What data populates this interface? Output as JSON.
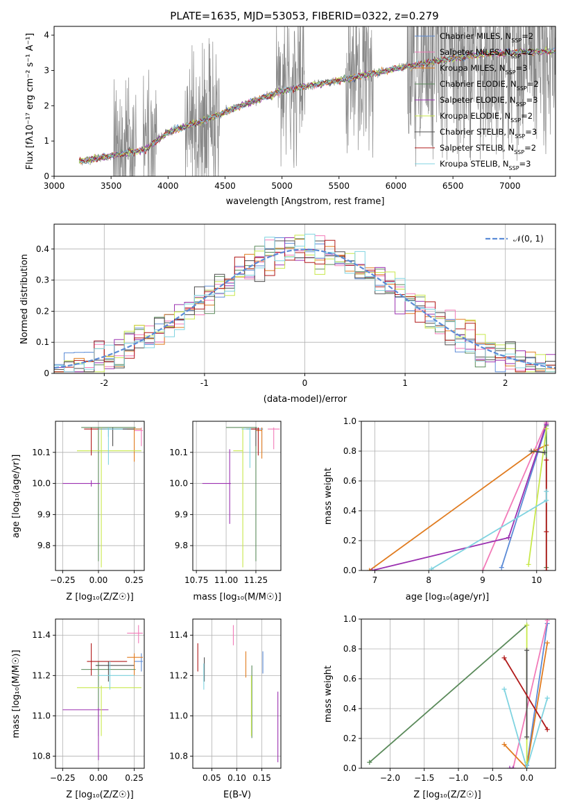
{
  "title": "PLATE=1635, MJD=53053, FIBERID=0322, z=0.279",
  "panels": {
    "spectrum": {
      "xlabel": "wavelength [Angstrom, rest frame]",
      "ylabel": "Flux [f$_\\lambda$10$^{-17}$ erg cm$^{-2}$ s$^{-1}$ A$^{-1}$]",
      "ylabel_display": "Flux [fλ10⁻¹⁷ erg cm⁻² s⁻¹ A⁻¹]"
    },
    "residuals": {
      "xlabel": "(data-model)/error",
      "ylabel": "Normed distribution",
      "legend_label": "𝒩(0, 1)"
    },
    "age_vs_Z": {
      "xlabel": "Z [log₁₀(Z/Z☉)]",
      "ylabel": "age  [log₁₀(age/yr)]"
    },
    "age_vs_mass": {
      "xlabel": "mass [log₁₀(M/M☉)]"
    },
    "massweight_vs_age": {
      "xlabel": "age  [log₁₀(age/yr)]",
      "ylabel": "mass weight"
    },
    "mass_vs_Z": {
      "xlabel": "Z [log₁₀(Z/Z☉)]",
      "ylabel": "mass [log₁₀(M/M☉)]"
    },
    "mass_vs_ebv": {
      "xlabel": "E(B-V)"
    },
    "massweight_vs_Z": {
      "xlabel": "Z [log₁₀(Z/Z☉)]",
      "ylabel": "mass weight"
    }
  },
  "models": [
    {
      "label": "Chabrier MILES, N$_{SSP}$=2",
      "display": "Chabrier MILES, N",
      "nssp": "2",
      "color": "#5b8bd6"
    },
    {
      "label": "Salpeter MILES, N$_{SSP}$=2",
      "display": "Salpeter MILES, N",
      "nssp": "2",
      "color": "#f27ab8"
    },
    {
      "label": "Kroupa MILES, N$_{SSP}$=3",
      "display": "Kroupa MILES, N",
      "nssp": "3",
      "color": "#e07b1f"
    },
    {
      "label": "Chabrier ELODIE, N$_{SSP}$=2",
      "display": "Chabrier ELODIE, N",
      "nssp": "2",
      "color": "#5a8a5a"
    },
    {
      "label": "Salpeter ELODIE, N$_{SSP}$=3",
      "display": "Salpeter ELODIE, N",
      "nssp": "3",
      "color": "#9b30b0"
    },
    {
      "label": "Kroupa ELODIE, N$_{SSP}$=2",
      "display": "Kroupa ELODIE, N",
      "nssp": "2",
      "color": "#c8e84a"
    },
    {
      "label": "Chabrier STELIB, N$_{SSP}$=3",
      "display": "Chabrier STELIB, N",
      "nssp": "3",
      "color": "#4d4d4d"
    },
    {
      "label": "Salpeter STELIB, N$_{SSP}$=2",
      "display": "Salpeter STELIB, N",
      "nssp": "2",
      "color": "#b01818"
    },
    {
      "label": "Kroupa STELIB, N$_{SSP}$=3",
      "display": "Kroupa STELIB, N",
      "nssp": "3",
      "color": "#7fd3e0"
    }
  ],
  "chart_data": [
    {
      "type": "line",
      "id": "spectrum",
      "title": "PLATE=1635, MJD=53053, FIBERID=0322, z=0.279",
      "xlim": [
        3000,
        7400
      ],
      "ylim": [
        0,
        4.25
      ],
      "xticks": [
        3000,
        3500,
        4000,
        4500,
        5000,
        5500,
        6000,
        6500,
        7000
      ],
      "yticks": [
        0,
        1,
        2,
        3,
        4
      ],
      "grid": false,
      "legend": "upper-right",
      "data_color": "#888888",
      "x_start": 3220,
      "x_end": 7400,
      "continuum_nodes": [
        [
          3220,
          0.42
        ],
        [
          3500,
          0.58
        ],
        [
          3800,
          0.75
        ],
        [
          4000,
          1.25
        ],
        [
          4300,
          1.55
        ],
        [
          4600,
          1.95
        ],
        [
          5000,
          2.42
        ],
        [
          5500,
          2.72
        ],
        [
          6000,
          3.05
        ],
        [
          6500,
          3.35
        ],
        [
          6800,
          3.48
        ],
        [
          7400,
          3.55
        ]
      ],
      "noisy_ranges": [
        [
          3520,
          3720
        ],
        [
          3780,
          3900
        ],
        [
          4150,
          4450
        ],
        [
          4950,
          5200
        ],
        [
          5560,
          5800
        ],
        [
          6100,
          7400
        ]
      ]
    },
    {
      "type": "histogram",
      "id": "residuals",
      "xlim": [
        -2.5,
        2.5
      ],
      "ylim": [
        0,
        0.48
      ],
      "xticks": [
        -2,
        -1,
        0,
        1,
        2
      ],
      "yticks": [
        0,
        0.1,
        0.2,
        0.3,
        0.4
      ],
      "grid": true,
      "legend": "upper-right",
      "bin_width": 0.1,
      "normal_curve": {
        "mean": 0,
        "sigma": 1,
        "color": "#5b8bd6",
        "style": "dashed"
      }
    },
    {
      "type": "scatter_errorbar",
      "id": "age_vs_Z",
      "xlim": [
        -0.3,
        0.32
      ],
      "ylim": [
        9.72,
        10.2
      ],
      "xticks": [
        -0.25,
        0,
        0.25
      ],
      "xticklabels": [
        "−0.25",
        "0.00",
        "0.25"
      ],
      "yticks": [
        9.8,
        9.9,
        10.0,
        10.1
      ],
      "yticklabels": [
        "9.8",
        "9.9",
        "10.0",
        "10.1"
      ],
      "grid": true,
      "points": [
        {
          "m": 0,
          "x": 0.07,
          "xlo": 0.02,
          "xhi": 0.3,
          "y": 10.175,
          "ylo": 10.15,
          "yhi": 10.18
        },
        {
          "m": 1,
          "x": 0.3,
          "xlo": 0.25,
          "xhi": 0.31,
          "y": 10.17,
          "ylo": 10.12,
          "yhi": 10.18
        },
        {
          "m": 2,
          "x": 0.25,
          "xlo": 0.2,
          "xhi": 0.3,
          "y": 10.175,
          "ylo": 10.07,
          "yhi": 10.18
        },
        {
          "m": 3,
          "x": 0.0,
          "xlo": -0.12,
          "xhi": 0.26,
          "y": 10.18,
          "ylo": 9.75,
          "yhi": 10.18
        },
        {
          "m": 4,
          "x": -0.05,
          "xlo": -0.25,
          "xhi": 0.01,
          "y": 10.0,
          "ylo": 9.99,
          "yhi": 10.01
        },
        {
          "m": 5,
          "x": 0.02,
          "xlo": -0.15,
          "xhi": 0.3,
          "y": 10.105,
          "ylo": 9.73,
          "yhi": 10.18
        },
        {
          "m": 6,
          "x": 0.1,
          "xlo": 0.0,
          "xhi": 0.25,
          "y": 10.175,
          "ylo": 10.12,
          "yhi": 10.18
        },
        {
          "m": 7,
          "x": -0.05,
          "xlo": -0.1,
          "xhi": 0.05,
          "y": 10.175,
          "ylo": 10.09,
          "yhi": 10.18
        },
        {
          "m": 8,
          "x": 0.07,
          "xlo": 0.0,
          "xhi": 0.17,
          "y": 10.175,
          "ylo": 10.06,
          "yhi": 10.18
        }
      ]
    },
    {
      "type": "scatter_errorbar",
      "id": "age_vs_mass",
      "xlim": [
        10.72,
        11.46
      ],
      "ylim": [
        9.72,
        10.2
      ],
      "xticks": [
        10.75,
        11.0,
        11.25
      ],
      "xticklabels": [
        "10.75",
        "11.00",
        "11.25"
      ],
      "yticks": [
        9.8,
        9.9,
        10.0,
        10.1
      ],
      "yticklabels": [
        "9.8",
        "9.9",
        "10.0",
        "10.1"
      ],
      "grid": true,
      "points": [
        {
          "m": 0,
          "x": 11.3,
          "xlo": 11.28,
          "xhi": 11.31,
          "y": 10.175,
          "ylo": 10.1,
          "yhi": 10.18
        },
        {
          "m": 1,
          "x": 11.4,
          "xlo": 11.35,
          "xhi": 11.45,
          "y": 10.175,
          "ylo": 10.11,
          "yhi": 10.18
        },
        {
          "m": 2,
          "x": 11.3,
          "xlo": 11.25,
          "xhi": 11.3,
          "y": 10.17,
          "ylo": 10.08,
          "yhi": 10.18
        },
        {
          "m": 3,
          "x": 11.25,
          "xlo": 11.0,
          "xhi": 11.26,
          "y": 10.18,
          "ylo": 9.75,
          "yhi": 10.18
        },
        {
          "m": 4,
          "x": 11.03,
          "xlo": 10.8,
          "xhi": 11.04,
          "y": 10.0,
          "ylo": 9.87,
          "yhi": 10.11
        },
        {
          "m": 5,
          "x": 11.14,
          "xlo": 11.06,
          "xhi": 11.14,
          "y": 10.105,
          "ylo": 9.73,
          "yhi": 10.18
        },
        {
          "m": 6,
          "x": 11.25,
          "xlo": 11.17,
          "xhi": 11.27,
          "y": 10.175,
          "ylo": 10.12,
          "yhi": 10.18
        },
        {
          "m": 7,
          "x": 11.27,
          "xlo": 11.2,
          "xhi": 11.28,
          "y": 10.175,
          "ylo": 10.09,
          "yhi": 10.18
        },
        {
          "m": 8,
          "x": 11.2,
          "xlo": 11.13,
          "xhi": 11.21,
          "y": 10.175,
          "ylo": 10.05,
          "yhi": 10.18
        }
      ]
    },
    {
      "type": "line",
      "id": "massweight_vs_age",
      "xlim": [
        6.75,
        10.35
      ],
      "ylim": [
        0,
        1
      ],
      "xticks": [
        7,
        8,
        9,
        10
      ],
      "xticklabels": [
        "7",
        "8",
        "9",
        "10"
      ],
      "yticks": [
        0,
        0.2,
        0.4,
        0.6,
        0.8,
        1.0
      ],
      "yticklabels": [
        "0.0",
        "0.2",
        "0.4",
        "0.6",
        "0.8",
        "1.0"
      ],
      "grid": true,
      "series": [
        {
          "m": 0,
          "points": [
            [
              9.35,
              0.02
            ],
            [
              10.18,
              0.97
            ]
          ]
        },
        {
          "m": 1,
          "points": [
            [
              9.0,
              0.0
            ],
            [
              10.18,
              0.99
            ]
          ]
        },
        {
          "m": 2,
          "points": [
            [
              6.9,
              0.0
            ],
            [
              9.95,
              0.8
            ],
            [
              10.18,
              0.84
            ]
          ]
        },
        {
          "m": 3,
          "points": [
            [
              10.18,
              0.02
            ],
            [
              10.18,
              0.97
            ]
          ]
        },
        {
          "m": 4,
          "points": [
            [
              6.95,
              0.0
            ],
            [
              9.48,
              0.22
            ],
            [
              10.18,
              0.98
            ]
          ]
        },
        {
          "m": 5,
          "points": [
            [
              9.85,
              0.04
            ],
            [
              10.18,
              0.95
            ]
          ]
        },
        {
          "m": 6,
          "points": [
            [
              9.9,
              0.8
            ],
            [
              10.15,
              0.79
            ]
          ]
        },
        {
          "m": 7,
          "points": [
            [
              10.18,
              0.0
            ],
            [
              10.18,
              0.26
            ],
            [
              10.18,
              0.74
            ]
          ]
        },
        {
          "m": 8,
          "points": [
            [
              8.05,
              0.01
            ],
            [
              10.18,
              0.47
            ],
            [
              10.18,
              0.53
            ]
          ]
        }
      ]
    },
    {
      "type": "scatter_errorbar",
      "id": "mass_vs_Z",
      "xlim": [
        -0.3,
        0.32
      ],
      "ylim": [
        10.74,
        11.48
      ],
      "xticks": [
        -0.25,
        0,
        0.25
      ],
      "xticklabels": [
        "−0.25",
        "0.00",
        "0.25"
      ],
      "yticks": [
        10.8,
        11.0,
        11.2,
        11.4
      ],
      "yticklabels": [
        "10.8",
        "11.0",
        "11.2",
        "11.4"
      ],
      "grid": true,
      "points": [
        {
          "m": 0,
          "x": 0.3,
          "xlo": 0.25,
          "xhi": 0.31,
          "y": 11.27,
          "ylo": 11.22,
          "yhi": 11.31
        },
        {
          "m": 1,
          "x": 0.28,
          "xlo": 0.2,
          "xhi": 0.31,
          "y": 11.41,
          "ylo": 11.36,
          "yhi": 11.45
        },
        {
          "m": 2,
          "x": 0.25,
          "xlo": 0.2,
          "xhi": 0.31,
          "y": 11.29,
          "ylo": 11.2,
          "yhi": 11.31
        },
        {
          "m": 3,
          "x": 0.0,
          "xlo": -0.12,
          "xhi": 0.26,
          "y": 11.23,
          "ylo": 10.9,
          "yhi": 11.27
        },
        {
          "m": 4,
          "x": 0.0,
          "xlo": -0.25,
          "xhi": 0.07,
          "y": 11.03,
          "ylo": 10.78,
          "yhi": 11.04
        },
        {
          "m": 5,
          "x": 0.02,
          "xlo": -0.15,
          "xhi": 0.3,
          "y": 11.14,
          "ylo": 10.9,
          "yhi": 11.15
        },
        {
          "m": 6,
          "x": 0.07,
          "xlo": -0.02,
          "xhi": 0.25,
          "y": 11.25,
          "ylo": 11.17,
          "yhi": 11.27
        },
        {
          "m": 7,
          "x": -0.05,
          "xlo": -0.08,
          "xhi": 0.2,
          "y": 11.27,
          "ylo": 11.2,
          "yhi": 11.36
        },
        {
          "m": 8,
          "x": 0.08,
          "xlo": 0.0,
          "xhi": 0.25,
          "y": 11.2,
          "ylo": 11.13,
          "yhi": 11.27
        }
      ]
    },
    {
      "type": "scatter_errorbar",
      "id": "mass_vs_ebv",
      "xlim": [
        0.012,
        0.188
      ],
      "ylim": [
        10.74,
        11.48
      ],
      "xticks": [
        0.05,
        0.1,
        0.15
      ],
      "xticklabels": [
        "0.05",
        "0.10",
        "0.15"
      ],
      "yticks": [
        10.8,
        11.0,
        11.2,
        11.4
      ],
      "yticklabels": [
        "10.8",
        "11.0",
        "11.2",
        "11.4"
      ],
      "grid": true,
      "points": [
        {
          "m": 0,
          "x": 0.152,
          "y": 11.26,
          "ylo": 11.21,
          "yhi": 11.32
        },
        {
          "m": 1,
          "x": 0.093,
          "y": 11.4,
          "ylo": 11.35,
          "yhi": 11.45
        },
        {
          "m": 2,
          "x": 0.118,
          "y": 11.26,
          "ylo": 11.19,
          "yhi": 11.32
        },
        {
          "m": 3,
          "x": 0.13,
          "y": 11.2,
          "ylo": 10.89,
          "yhi": 11.25
        },
        {
          "m": 4,
          "x": 0.182,
          "y": 11.0,
          "ylo": 10.77,
          "yhi": 11.12
        },
        {
          "m": 5,
          "x": 0.129,
          "y": 11.14,
          "ylo": 10.9,
          "yhi": 11.2
        },
        {
          "m": 6,
          "x": 0.035,
          "y": 11.24,
          "ylo": 11.17,
          "yhi": 11.29
        },
        {
          "m": 7,
          "x": 0.022,
          "y": 11.27,
          "ylo": 11.22,
          "yhi": 11.36
        },
        {
          "m": 8,
          "x": 0.034,
          "y": 11.2,
          "ylo": 11.13,
          "yhi": 11.26
        }
      ]
    },
    {
      "type": "line",
      "id": "massweight_vs_Z",
      "xlim": [
        -2.42,
        0.42
      ],
      "ylim": [
        0,
        1
      ],
      "xticks": [
        -2.0,
        -1.5,
        -1.0,
        -0.5,
        0.0
      ],
      "xticklabels": [
        "−2.0",
        "−1.5",
        "−1.0",
        "−0.5",
        "0.0"
      ],
      "yticks": [
        0,
        0.2,
        0.4,
        0.6,
        0.8,
        1.0
      ],
      "yticklabels": [
        "0.0",
        "0.2",
        "0.4",
        "0.6",
        "0.8",
        "1.0"
      ],
      "grid": true,
      "series": [
        {
          "m": 0,
          "points": [
            [
              0.0,
              0.02
            ],
            [
              0.3,
              0.97
            ]
          ]
        },
        {
          "m": 1,
          "points": [
            [
              -0.2,
              0.0
            ],
            [
              0.3,
              0.99
            ]
          ]
        },
        {
          "m": 2,
          "points": [
            [
              -0.33,
              0.16
            ],
            [
              0.0,
              0.0
            ],
            [
              0.3,
              0.84
            ]
          ]
        },
        {
          "m": 3,
          "points": [
            [
              -2.3,
              0.04
            ],
            [
              0.0,
              0.96
            ]
          ]
        },
        {
          "m": 4,
          "points": [
            [
              -0.25,
              0.0
            ],
            [
              -0.2,
              0.0
            ]
          ]
        },
        {
          "m": 5,
          "points": [
            [
              0.0,
              0.04
            ],
            [
              0.0,
              0.96
            ]
          ]
        },
        {
          "m": 6,
          "points": [
            [
              0.0,
              0.21
            ],
            [
              0.0,
              0.79
            ]
          ]
        },
        {
          "m": 7,
          "points": [
            [
              -0.33,
              0.74
            ],
            [
              0.3,
              0.26
            ]
          ]
        },
        {
          "m": 8,
          "points": [
            [
              -0.33,
              0.53
            ],
            [
              0.0,
              0.0
            ],
            [
              0.3,
              0.47
            ]
          ]
        }
      ]
    }
  ]
}
